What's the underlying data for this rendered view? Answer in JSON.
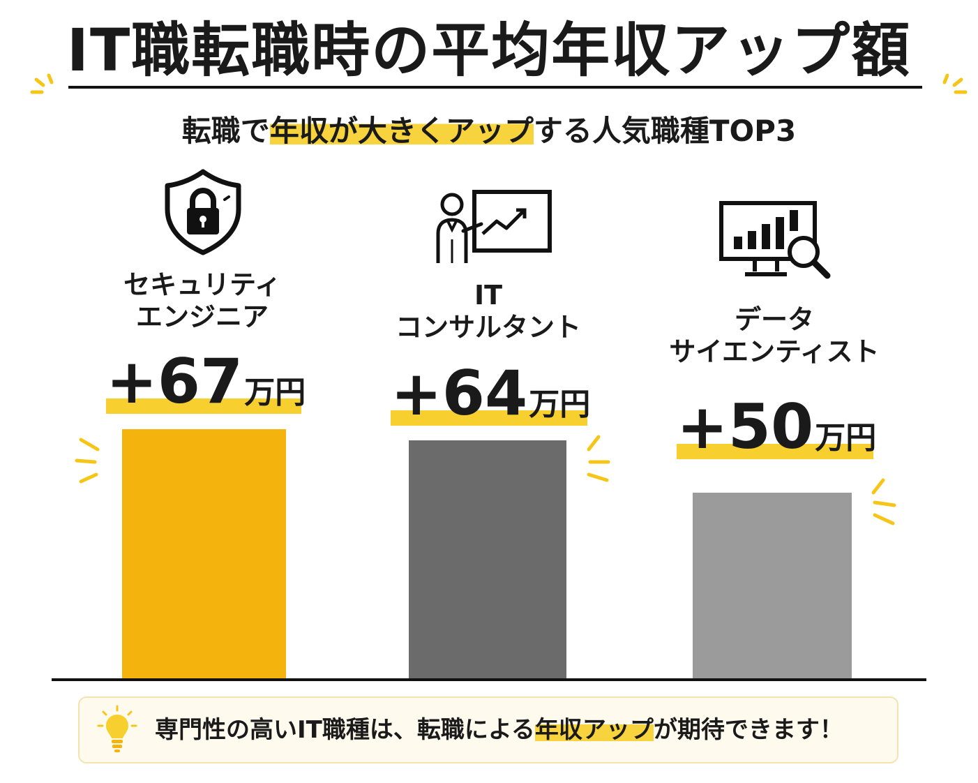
{
  "title": "IT職転職時の平均年収アップ額",
  "subtitle": {
    "before": "転職で",
    "highlight": "年収が大きくアップ",
    "after": "する人気職種TOP3"
  },
  "chart_data": {
    "type": "bar",
    "unit": "万円",
    "categories": [
      "セキュリティエンジニア",
      "ITコンサルタント",
      "データサイエンティスト"
    ],
    "values": [
      67,
      64,
      50
    ],
    "value_labels": [
      "+67",
      "+64",
      "+50"
    ],
    "category_lines": [
      [
        "セキュリティ",
        "エンジニア"
      ],
      [
        "IT",
        "コンサルタント"
      ],
      [
        "データ",
        "サイエンティスト"
      ]
    ],
    "bar_colors": [
      "#f5b40d",
      "#6b6b6b",
      "#9b9b9b"
    ],
    "icons": [
      "shield-lock-icon",
      "presenter-chart-icon",
      "monitor-analytics-icon"
    ]
  },
  "note": {
    "icon": "lightbulb-icon",
    "before": "専門性の高いIT職種は、転職による",
    "highlight": "年収アップ",
    "after": "が期待できます！"
  },
  "colors": {
    "accent_yellow": "#f7cf2f",
    "text": "#1a1a1a",
    "note_bg": "#fffaee"
  }
}
